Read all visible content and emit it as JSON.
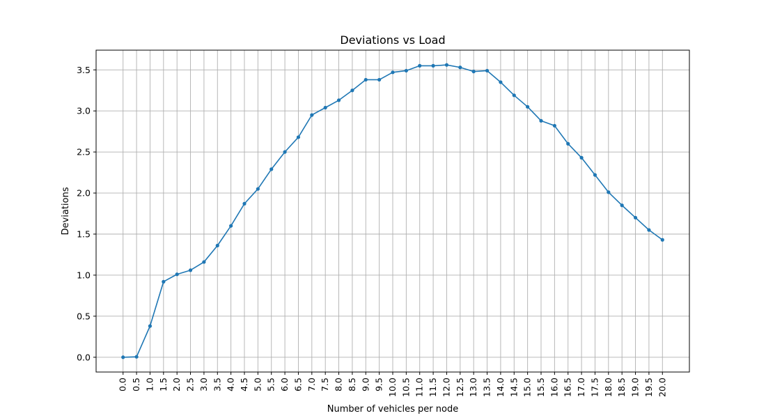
{
  "chart_data": {
    "type": "line",
    "title": "Deviations vs Load",
    "xlabel": "Number of vehicles per node",
    "ylabel": "Deviations",
    "x": [
      0.0,
      0.5,
      1.0,
      1.5,
      2.0,
      2.5,
      3.0,
      3.5,
      4.0,
      4.5,
      5.0,
      5.5,
      6.0,
      6.5,
      7.0,
      7.5,
      8.0,
      8.5,
      9.0,
      9.5,
      10.0,
      10.5,
      11.0,
      11.5,
      12.0,
      12.5,
      13.0,
      13.5,
      14.0,
      14.5,
      15.0,
      15.5,
      16.0,
      16.5,
      17.0,
      17.5,
      18.0,
      18.5,
      19.0,
      19.5,
      20.0
    ],
    "x_tick_labels": [
      "0.0",
      "0.5",
      "1.0",
      "1.5",
      "2.0",
      "2.5",
      "3.0",
      "3.5",
      "4.0",
      "4.5",
      "5.0",
      "5.5",
      "6.0",
      "6.5",
      "7.0",
      "7.5",
      "8.0",
      "8.5",
      "9.0",
      "9.5",
      "10.0",
      "10.5",
      "11.0",
      "11.5",
      "12.0",
      "12.5",
      "13.0",
      "13.5",
      "14.0",
      "14.5",
      "15.0",
      "15.5",
      "16.0",
      "16.5",
      "17.0",
      "17.5",
      "18.0",
      "18.5",
      "19.0",
      "19.5",
      "20.0"
    ],
    "series": [
      {
        "color": "#1f77b4",
        "values": [
          0.0,
          0.005,
          0.38,
          0.92,
          1.01,
          1.06,
          1.16,
          1.36,
          1.6,
          1.87,
          2.05,
          2.29,
          2.5,
          2.68,
          2.95,
          3.04,
          3.13,
          3.25,
          3.38,
          3.38,
          3.47,
          3.49,
          3.55,
          3.55,
          3.56,
          3.53,
          3.48,
          3.49,
          3.35,
          3.19,
          3.05,
          2.88,
          2.82,
          2.6,
          2.43,
          2.22,
          2.01,
          1.85,
          1.7,
          1.55,
          1.43
        ]
      }
    ],
    "y_ticks": [
      0.0,
      0.5,
      1.0,
      1.5,
      2.0,
      2.5,
      3.0,
      3.5
    ],
    "y_tick_labels": [
      "0.0",
      "0.5",
      "1.0",
      "1.5",
      "2.0",
      "2.5",
      "3.0",
      "3.5"
    ],
    "xlim": [
      -1.0,
      21.0
    ],
    "ylim": [
      -0.18,
      3.74
    ],
    "grid": true,
    "marker": "circle",
    "legend": "none"
  }
}
